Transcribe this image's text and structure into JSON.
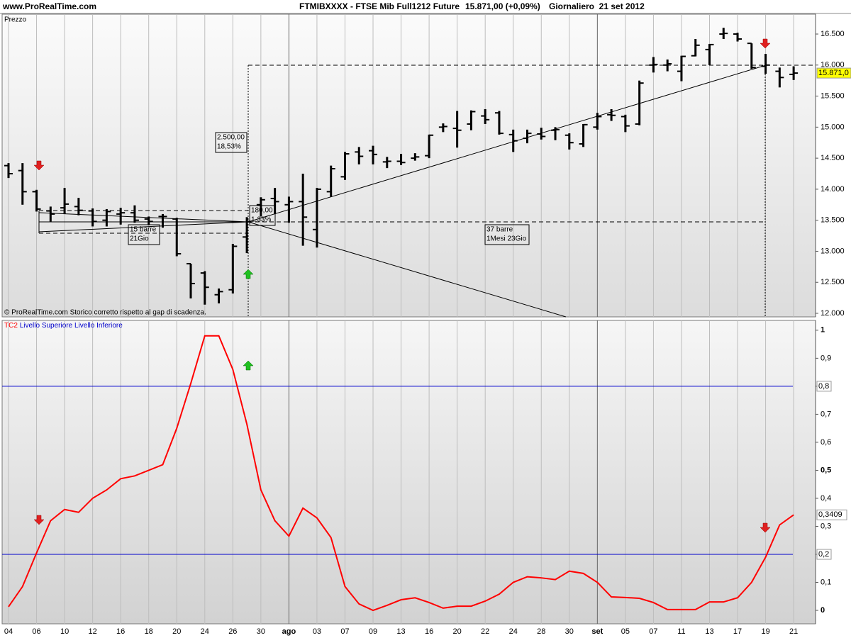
{
  "header": {
    "site": "www.ProRealTime.com",
    "instrument": "FTMIBXXXX - FTSE Mib Full1212 Future",
    "quote": "15.871,00 (+0,09%)",
    "period": "Giornaliero  21 set 2012"
  },
  "chart_data": [
    {
      "type": "ohlc",
      "axis_label": "Prezzo",
      "footnote": "© ProRealTime.com  Storico corretto rispetto al gap di scadenza.",
      "color": "#000000",
      "open": [
        14380,
        14300,
        13960,
        13650,
        13700,
        13720,
        13650,
        13500,
        13600,
        13620,
        13520,
        13560,
        13520,
        12800,
        12650,
        12300,
        12380,
        13230,
        13750,
        13850,
        13750,
        13800,
        13350,
        13960,
        14200,
        14600,
        14620,
        14440,
        14450,
        14500,
        14540,
        15000,
        14980,
        15050,
        15180,
        15230,
        14880,
        14820,
        14890,
        14950,
        14870,
        14730,
        15000,
        15200,
        15170,
        15050,
        16000,
        16000,
        15900,
        16150,
        16250,
        16500,
        16500,
        16350,
        15980,
        15900,
        15850
      ],
      "high": [
        14420,
        14420,
        13990,
        13720,
        14020,
        13860,
        13690,
        13680,
        13700,
        13740,
        13560,
        13600,
        13540,
        12800,
        12680,
        12400,
        13120,
        13550,
        13870,
        14020,
        13880,
        14250,
        14020,
        14380,
        14600,
        14680,
        14700,
        14520,
        14570,
        14580,
        14880,
        15060,
        15260,
        15270,
        15290,
        15260,
        14960,
        14960,
        14990,
        15000,
        14900,
        15050,
        15230,
        15290,
        15200,
        15750,
        16130,
        16090,
        16150,
        16420,
        16340,
        16600,
        16520,
        16350,
        16180,
        15960,
        15980
      ],
      "low": [
        14180,
        13750,
        13640,
        13480,
        13600,
        13580,
        13400,
        13400,
        13430,
        13460,
        13420,
        13380,
        12920,
        12240,
        12140,
        12160,
        12320,
        12970,
        13560,
        13600,
        13460,
        13090,
        13060,
        13880,
        14150,
        14400,
        14400,
        14340,
        14390,
        14460,
        14500,
        14920,
        14670,
        14950,
        15050,
        14880,
        14600,
        14740,
        14800,
        14790,
        14640,
        14680,
        14960,
        15100,
        14920,
        15030,
        15880,
        15900,
        15740,
        16140,
        16000,
        16420,
        16380,
        15940,
        15860,
        15640,
        15760
      ],
      "close": [
        14250,
        13960,
        13680,
        13600,
        13760,
        13660,
        13480,
        13640,
        13620,
        13500,
        13480,
        13560,
        12960,
        12480,
        12420,
        12350,
        13080,
        13480,
        13830,
        13800,
        13800,
        13550,
        14000,
        14330,
        14570,
        14530,
        14560,
        14450,
        14430,
        14520,
        14870,
        15010,
        14950,
        15250,
        15120,
        14900,
        14780,
        14900,
        14850,
        14960,
        14750,
        15040,
        15170,
        15190,
        15020,
        15710,
        16010,
        16020,
        16140,
        16320,
        16330,
        16510,
        16420,
        15960,
        16000,
        15800,
        15871
      ],
      "last_label": "15.871,0",
      "ylim": [
        11943,
        16820
      ],
      "yticks": [
        {
          "value": 12000,
          "label": "12.000"
        },
        {
          "value": 12500,
          "label": "12.500"
        },
        {
          "value": 13000,
          "label": "13.000"
        },
        {
          "value": 13500,
          "label": "13.500"
        },
        {
          "value": 14000,
          "label": "14.000"
        },
        {
          "value": 14500,
          "label": "14.500"
        },
        {
          "value": 15000,
          "label": "15.000"
        },
        {
          "value": 15500,
          "label": "15.500"
        },
        {
          "value": 16000,
          "label": "16.000"
        },
        {
          "value": 16500,
          "label": "16.500"
        }
      ],
      "annotations": [
        {
          "lines": [
            "2.500,00",
            "18,53%"
          ]
        },
        {
          "lines": [
            "180,00",
            "1,33%"
          ]
        },
        {
          "lines": [
            "15 barre",
            "21Gio"
          ]
        },
        {
          "lines": [
            "37 barre",
            "1Mesi 23Gio"
          ]
        }
      ]
    },
    {
      "type": "line",
      "categories": [
        "04",
        null,
        "06",
        null,
        "10",
        null,
        "12",
        null,
        "16",
        null,
        "18",
        null,
        "20",
        null,
        "24",
        null,
        "26",
        null,
        "30",
        null,
        "ago",
        null,
        "03",
        null,
        "07",
        null,
        "09",
        null,
        "13",
        null,
        "16",
        null,
        "20",
        null,
        "22",
        null,
        "24",
        null,
        "28",
        null,
        "30",
        null,
        "set",
        null,
        "05",
        null,
        "07",
        null,
        "11",
        null,
        "13",
        null,
        "17",
        null,
        "19",
        null,
        "21"
      ],
      "series": [
        {
          "name": "TC2",
          "color": "#ff0000",
          "values": [
            0.013,
            0.085,
            0.205,
            0.32,
            0.36,
            0.35,
            0.4,
            0.43,
            0.47,
            0.48,
            0.5,
            0.52,
            0.65,
            0.81,
            0.98,
            0.98,
            0.86,
            0.665,
            0.43,
            0.32,
            0.265,
            0.365,
            0.33,
            0.26,
            0.085,
            0.023,
            0,
            0.018,
            0.038,
            0.045,
            0.028,
            0.008,
            0.015,
            0.015,
            0.033,
            0.058,
            0.1,
            0.12,
            0.116,
            0.11,
            0.14,
            0.132,
            0.1,
            0.048,
            0.046,
            0.043,
            0.028,
            0.003,
            0.003,
            0.003,
            0.03,
            0.03,
            0.045,
            0.1,
            0.19,
            0.305,
            0.3409
          ]
        }
      ],
      "last_label": "0,3409",
      "levels": [
        {
          "name": "Livello Superiore",
          "color": "#0000cc",
          "value": 0.8,
          "label": "0,8"
        },
        {
          "name": "Livello Inferiore",
          "color": "#0000cc",
          "value": 0.2,
          "label": "0,2"
        }
      ],
      "ylim": [
        -0.048,
        1.035
      ],
      "yticks": [
        0,
        {
          "value": 0.1,
          "label": "0,1"
        },
        {
          "value": 0.2,
          "label": "0,2"
        },
        {
          "value": 0.3,
          "label": "0,3"
        },
        {
          "value": 0.4,
          "label": "0,4"
        },
        {
          "value": 0.5,
          "label": "0,5"
        },
        {
          "value": 0.6,
          "label": "0,6"
        },
        {
          "value": 0.7,
          "label": "0,7"
        },
        {
          "value": 0.8,
          "label": "0,8"
        },
        {
          "value": 0.9,
          "label": "0,9"
        },
        1
      ]
    }
  ]
}
